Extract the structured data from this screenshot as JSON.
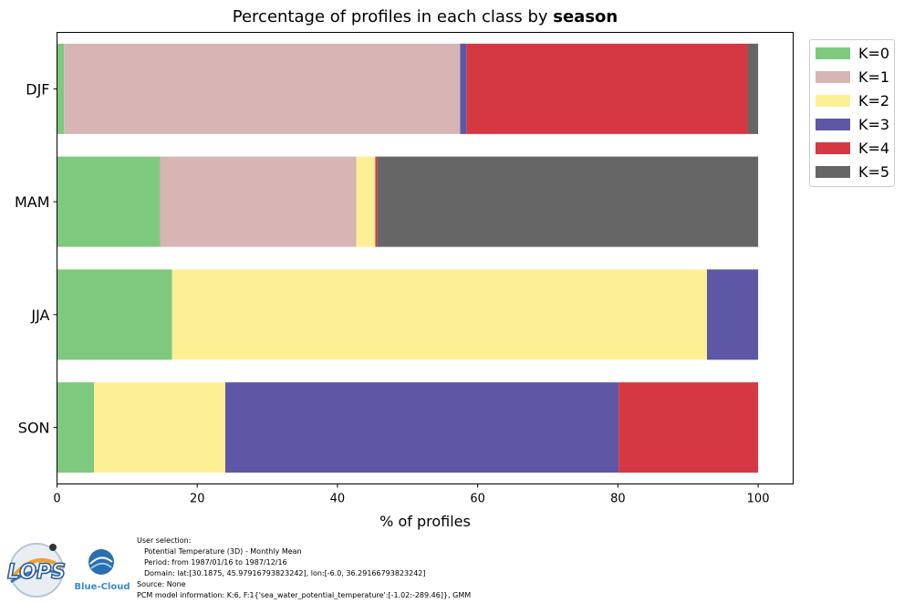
{
  "title": {
    "prefix": "Percentage of profiles in each class by ",
    "bold": "season"
  },
  "xlabel": "% of profiles",
  "legend": [
    {
      "label": "K=0",
      "color": "#7fc97f"
    },
    {
      "label": "K=1",
      "color": "#d6b5b4"
    },
    {
      "label": "K=2",
      "color": "#fdf094"
    },
    {
      "label": "K=3",
      "color": "#5e57a6"
    },
    {
      "label": "K=4",
      "color": "#d53842"
    },
    {
      "label": "K=5",
      "color": "#666666"
    }
  ],
  "chart_data": {
    "type": "bar",
    "orientation": "horizontal",
    "stacked": true,
    "categories": [
      "DJF",
      "MAM",
      "JJA",
      "SON"
    ],
    "series": [
      {
        "name": "K=0",
        "color": "#7fc97f",
        "values": [
          1.0,
          14.7,
          16.4,
          5.3
        ]
      },
      {
        "name": "K=1",
        "color": "#d6b5b4",
        "values": [
          56.5,
          28.0,
          0.0,
          0.0
        ]
      },
      {
        "name": "K=2",
        "color": "#fdf094",
        "values": [
          0.0,
          2.7,
          76.3,
          18.7
        ]
      },
      {
        "name": "K=3",
        "color": "#5e57a6",
        "values": [
          0.9,
          0.0,
          7.3,
          56.1
        ]
      },
      {
        "name": "K=4",
        "color": "#d53842",
        "values": [
          40.1,
          0.3,
          0.0,
          19.9
        ]
      },
      {
        "name": "K=5",
        "color": "#666666",
        "values": [
          1.5,
          54.3,
          0.0,
          0.0
        ]
      }
    ],
    "xlim": [
      0,
      105
    ],
    "xticks": [
      0,
      20,
      40,
      60,
      80,
      100
    ],
    "xlabel": "% of profiles",
    "legend_position": "outside-right"
  },
  "footer": {
    "lines": [
      "User selection:",
      "Potential Temperature (3D) - Monthly Mean",
      "Period: from 1987/01/16 to 1987/12/16",
      "Domain: lat:[30.1875, 45.97916793823242], lon:[-6.0, 36.29166793823242]",
      "Source: None",
      "PCM model information: K:6, F:1{'sea_water_potential_temperature':[-1.02:-289.46]}, GMM"
    ]
  },
  "logos": {
    "lops": "LOPS",
    "bluecloud": "Blue-Cloud"
  }
}
